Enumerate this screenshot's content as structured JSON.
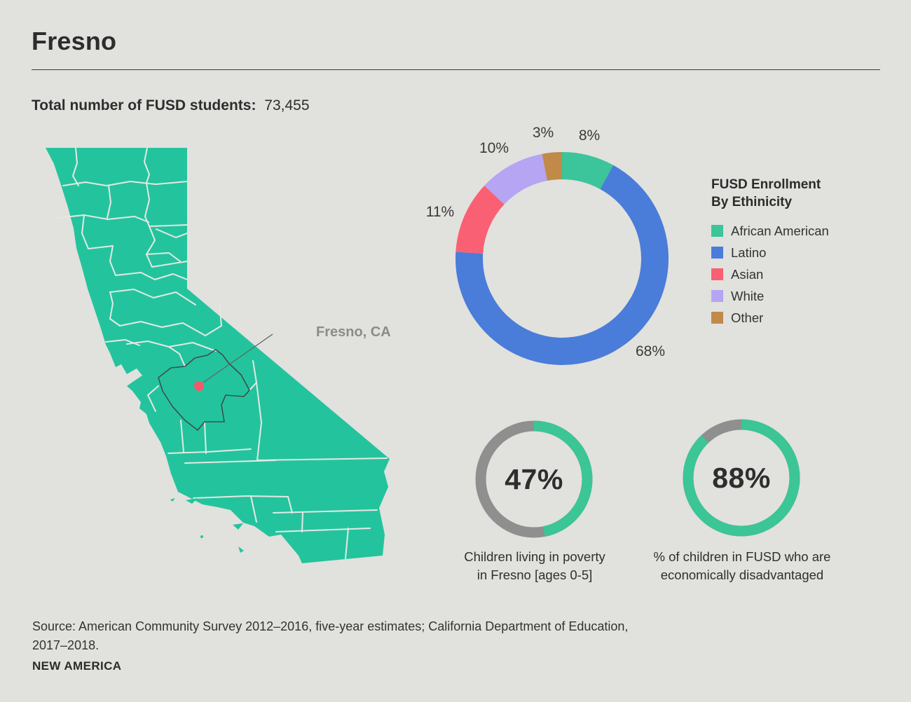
{
  "page": {
    "title": "Fresno",
    "stat_label": "Total number of FUSD students:",
    "stat_value": "73,455"
  },
  "map": {
    "callout_label": "Fresno, CA"
  },
  "chart_data": [
    {
      "type": "pie",
      "subtype": "donut",
      "title": "FUSD Enrollment By Ethinicity",
      "legend_title_line1": "FUSD Enrollment",
      "legend_title_line2": "By Ethinicity",
      "legend_position": "right",
      "start_angle_deg": 0,
      "direction": "clockwise",
      "slices": [
        {
          "name": "African American",
          "value": 8,
          "label": "8%",
          "color": "#3cc49a"
        },
        {
          "name": "Latino",
          "value": 68,
          "label": "68%",
          "color": "#4a7cd9"
        },
        {
          "name": "Asian",
          "value": 11,
          "label": "11%",
          "color": "#fa6073"
        },
        {
          "name": "White",
          "value": 10,
          "label": "10%",
          "color": "#b5a5f3"
        },
        {
          "name": "Other",
          "value": 3,
          "label": "3%",
          "color": "#c18a49"
        }
      ]
    },
    {
      "type": "pie",
      "subtype": "gauge-donut",
      "value": 47,
      "center_label": "47%",
      "caption_line1": "Children living in poverty",
      "caption_line2": "in Fresno [ages 0-5]",
      "arc_color": "#3cc596",
      "track_color": "#8f8f8f"
    },
    {
      "type": "pie",
      "subtype": "gauge-donut",
      "value": 88,
      "center_label": "88%",
      "caption_line1": "% of children in FUSD who are",
      "caption_line2": "economically disadvantaged",
      "arc_color": "#3cc596",
      "track_color": "#8f8f8f"
    }
  ],
  "source": {
    "line1": "Source: American Community Survey 2012–2016, five-year estimates; California Department of Education,",
    "line2": "2017–2018."
  },
  "brand": "NEW AMERICA",
  "colors": {
    "background": "#e1e1de",
    "map_green": "#23c49d",
    "county_line": "#e6e8e4",
    "fresno_outline": "#3e4e4e",
    "dot_red": "#f4586b",
    "callout_gray": "#8b8b8b"
  }
}
